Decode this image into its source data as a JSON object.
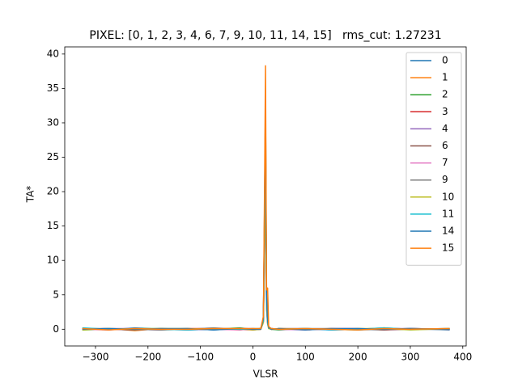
{
  "chart_data": {
    "type": "line",
    "title": "PIXEL: [0, 1, 2, 3, 4, 6, 7, 9, 10, 11, 14, 15]   rms_cut: 1.27231",
    "xlabel": "VLSR",
    "ylabel": "TA*",
    "x": [
      -325,
      -275,
      -225,
      -175,
      -125,
      -75,
      -25,
      0,
      15,
      20,
      22,
      24,
      26,
      28,
      30,
      35,
      50,
      100,
      150,
      200,
      250,
      300,
      375
    ],
    "series": [
      {
        "name": "0",
        "color": "#1f77b4",
        "values": [
          0.1,
          -0.1,
          0.2,
          0,
          0.1,
          -0.1,
          0.1,
          0,
          0.1,
          1.5,
          15,
          30,
          4.5,
          1.2,
          0.3,
          0.1,
          0,
          0.1,
          -0.1,
          0.1,
          0,
          0.1,
          -0.1
        ]
      },
      {
        "name": "1",
        "color": "#ff7f0e",
        "values": [
          0,
          0.1,
          -0.2,
          0.1,
          0,
          0.1,
          -0.1,
          0.1,
          0,
          1.6,
          16,
          32,
          4.8,
          3,
          0.3,
          0,
          0.1,
          -0.1,
          0.1,
          0,
          0.2,
          0,
          0.1
        ]
      },
      {
        "name": "2",
        "color": "#2ca02c",
        "values": [
          -0.1,
          0,
          0.1,
          0.1,
          -0.1,
          0,
          0.2,
          0,
          0.1,
          1.2,
          12,
          25,
          3.7,
          1,
          0.2,
          0,
          -0.1,
          0.1,
          0,
          -0.1,
          0.1,
          0,
          0
        ]
      },
      {
        "name": "3",
        "color": "#d62728",
        "values": [
          0.1,
          0,
          0,
          -0.1,
          0.1,
          0.1,
          0,
          -0.1,
          0,
          1.4,
          14,
          28,
          4.2,
          1.1,
          0.2,
          0.1,
          0,
          0,
          0.1,
          0.1,
          -0.1,
          0.1,
          0
        ]
      },
      {
        "name": "4",
        "color": "#9467bd",
        "values": [
          0,
          0.1,
          0.1,
          0,
          -0.1,
          0,
          0.1,
          0.1,
          0,
          1.1,
          11,
          22,
          3.3,
          0.9,
          0.2,
          0,
          0.1,
          0,
          -0.1,
          0,
          0.1,
          0.1,
          0
        ]
      },
      {
        "name": "6",
        "color": "#8c564b",
        "values": [
          0.1,
          0,
          -0.1,
          0.1,
          0,
          0.1,
          0,
          0,
          0.1,
          1.3,
          13,
          26,
          3.9,
          1,
          0.2,
          0,
          0.1,
          0.1,
          0,
          0,
          -0.1,
          0,
          0.1
        ]
      },
      {
        "name": "7",
        "color": "#e377c2",
        "values": [
          0,
          -0.1,
          0.1,
          0,
          0.1,
          0,
          -0.1,
          0.1,
          0,
          1,
          10,
          20,
          3,
          0.8,
          0.1,
          0.1,
          0,
          -0.1,
          0.1,
          0.1,
          0,
          0,
          0
        ]
      },
      {
        "name": "9",
        "color": "#7f7f7f",
        "values": [
          0.1,
          0.1,
          0,
          -0.1,
          0,
          0.2,
          0,
          0,
          0.1,
          1.2,
          12,
          24,
          3.6,
          2.6,
          0.2,
          0,
          0,
          0.1,
          0.1,
          -0.1,
          0,
          0.1,
          0
        ]
      },
      {
        "name": "10",
        "color": "#bcbd22",
        "values": [
          -0.1,
          0.1,
          0,
          0.1,
          0.1,
          0,
          0.1,
          -0.1,
          0,
          1,
          10.5,
          21,
          3.1,
          0.8,
          0.1,
          0,
          0.1,
          0,
          0,
          0.1,
          0.1,
          -0.1,
          0.1
        ]
      },
      {
        "name": "11",
        "color": "#17becf",
        "values": [
          0.2,
          0,
          0.1,
          0,
          -0.1,
          0.1,
          0,
          0.1,
          0.1,
          1.3,
          13.5,
          27,
          4,
          1.1,
          0.2,
          0.1,
          0,
          0.1,
          -0.1,
          0,
          0.2,
          0,
          0.1
        ]
      },
      {
        "name": "14",
        "color": "#1f77b4",
        "values": [
          0,
          0.1,
          0,
          0.1,
          0.1,
          -0.1,
          0.1,
          0,
          0,
          1.6,
          16.5,
          33,
          5,
          1.3,
          0.3,
          0,
          0.1,
          -0.1,
          0.1,
          0.1,
          0,
          0.1,
          0
        ]
      },
      {
        "name": "15",
        "color": "#ff7f0e",
        "values": [
          0.1,
          -0.1,
          0.1,
          0,
          0,
          0.1,
          0.1,
          0.1,
          0.1,
          1.9,
          19,
          38.3,
          5.7,
          6,
          0.4,
          0.1,
          0,
          0.1,
          0,
          -0.1,
          0.1,
          0,
          0.1
        ]
      }
    ],
    "xlim": [
      -358.6,
      406.5
    ],
    "xticks": [
      {
        "value": -300,
        "label": "−300"
      },
      {
        "value": -200,
        "label": "−200"
      },
      {
        "value": -100,
        "label": "−100"
      },
      0,
      100,
      200,
      300,
      400
    ],
    "ylim": [
      -2.43,
      41.04
    ],
    "yticks": [
      0,
      5,
      10,
      15,
      20,
      25,
      30,
      35,
      40
    ],
    "legend": "upper right",
    "grid": false
  }
}
